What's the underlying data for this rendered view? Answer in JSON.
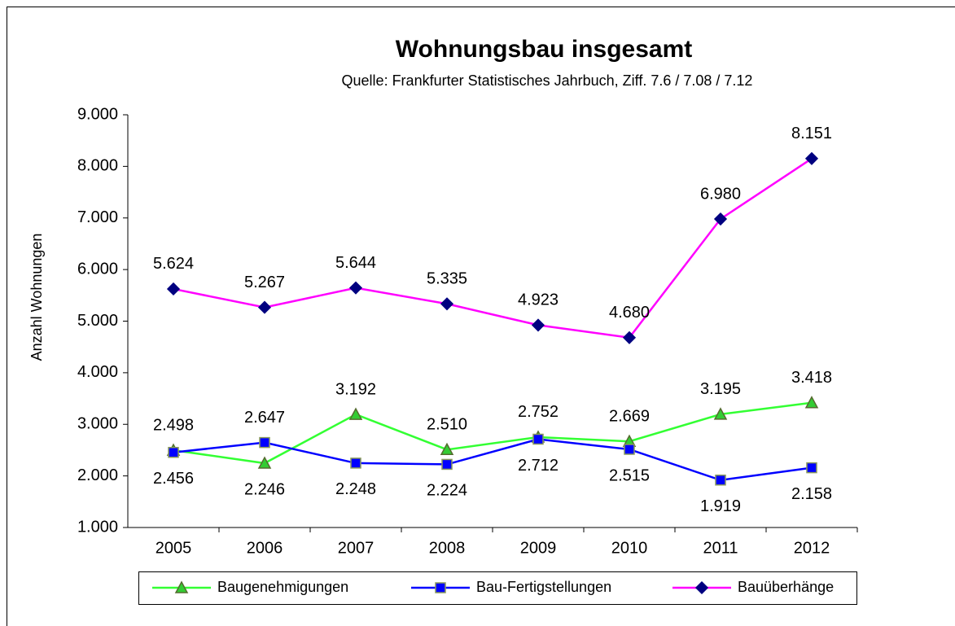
{
  "chart_data": {
    "type": "line",
    "title": "Wohnungsbau insgesamt",
    "subtitle": "Quelle:  Frankfurter Statistisches Jahrbuch, Ziff. 7.6 / 7.08 / 7.12",
    "y_label": "Anzahl Wohnungen",
    "categories": [
      "2005",
      "2006",
      "2007",
      "2008",
      "2009",
      "2010",
      "2011",
      "2012"
    ],
    "ylim": [
      1000,
      9000
    ],
    "yticks": [
      {
        "value": 1000,
        "label": "1.000"
      },
      {
        "value": 2000,
        "label": "2.000"
      },
      {
        "value": 3000,
        "label": "3.000"
      },
      {
        "value": 4000,
        "label": "4.000"
      },
      {
        "value": 5000,
        "label": "5.000"
      },
      {
        "value": 6000,
        "label": "6.000"
      },
      {
        "value": 7000,
        "label": "7.000"
      },
      {
        "value": 8000,
        "label": "8.000"
      },
      {
        "value": 9000,
        "label": "9.000"
      }
    ],
    "legend": "bottom",
    "series": [
      {
        "name": "Baugenehmigungen",
        "color": "#33ff33",
        "marker": "triangle",
        "marker_color": "#33cc33",
        "values": [
          2498,
          2246,
          3192,
          2510,
          2752,
          2669,
          3195,
          3418
        ],
        "value_labels": [
          "2.498",
          "2.246",
          "3.192",
          "2.510",
          "2.752",
          "2.669",
          "3.195",
          "3.418"
        ]
      },
      {
        "name": "Bau-Fertigstellungen",
        "color": "#0000ff",
        "marker": "square",
        "marker_color": "#0000ff",
        "values": [
          2456,
          2647,
          2248,
          2224,
          2712,
          2515,
          1919,
          2158
        ],
        "value_labels": [
          "2.456",
          "2.647",
          "2.248",
          "2.224",
          "2.712",
          "2.515",
          "1.919",
          "2.158"
        ]
      },
      {
        "name": "Bauüberhänge",
        "color": "#ff00ff",
        "marker": "diamond",
        "marker_color": "#000080",
        "values": [
          5624,
          5267,
          5644,
          5335,
          4923,
          4680,
          6980,
          8151
        ],
        "value_labels": [
          "5.624",
          "5.267",
          "5.644",
          "5.335",
          "4.923",
          "4.680",
          "6.980",
          "8.151"
        ]
      }
    ]
  }
}
